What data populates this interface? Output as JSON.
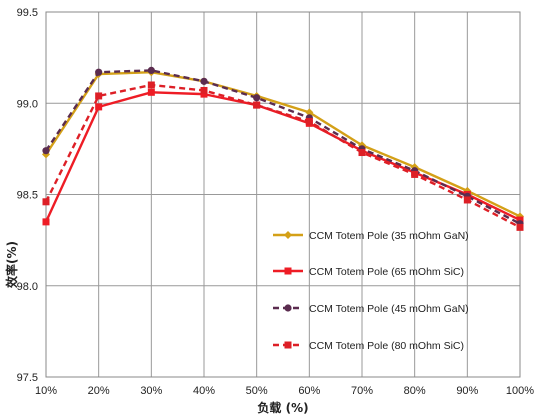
{
  "chart_data": {
    "type": "line",
    "title": "",
    "xlabel": "负载 (%)",
    "ylabel": "效率(%)",
    "categories": [
      "10%",
      "20%",
      "30%",
      "40%",
      "50%",
      "60%",
      "70%",
      "80%",
      "90%",
      "100%"
    ],
    "x": [
      10,
      20,
      30,
      40,
      50,
      60,
      70,
      80,
      90,
      100
    ],
    "ylim": [
      97.5,
      99.5
    ],
    "yticks": [
      "97.5",
      "98.0",
      "98.5",
      "99.0",
      "99.5"
    ],
    "ytick_values": [
      97.5,
      98.0,
      98.5,
      99.0,
      99.5
    ],
    "grid": true,
    "legend_position": "bottom-right",
    "series": [
      {
        "name": "CCM Totem Pole (35 mOhm GaN)",
        "color": "#d4a017",
        "dash": "solid",
        "marker": "diamond",
        "values": [
          98.72,
          99.16,
          99.17,
          99.12,
          99.04,
          98.95,
          98.77,
          98.65,
          98.52,
          98.38
        ]
      },
      {
        "name": "CCM Totem Pole (65 mOhm SiC)",
        "color": "#ee1c25",
        "dash": "solid",
        "marker": "square",
        "values": [
          98.35,
          98.98,
          99.06,
          99.05,
          98.99,
          98.89,
          98.74,
          98.62,
          98.5,
          98.36
        ]
      },
      {
        "name": "CCM Totem Pole (45 mOhm GaN)",
        "color": "#5b2c4f",
        "dash": "dashed",
        "marker": "circle",
        "values": [
          98.74,
          99.17,
          99.18,
          99.12,
          99.03,
          98.92,
          98.75,
          98.63,
          98.49,
          98.34
        ]
      },
      {
        "name": "CCM Totem Pole (80 mOhm SiC)",
        "color": "#dd1f26",
        "dash": "dashed",
        "marker": "square",
        "values": [
          98.46,
          99.04,
          99.1,
          99.07,
          98.99,
          98.9,
          98.73,
          98.61,
          98.47,
          98.32
        ]
      }
    ]
  }
}
